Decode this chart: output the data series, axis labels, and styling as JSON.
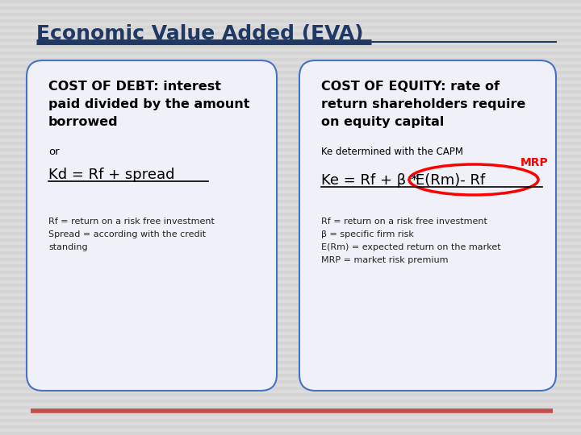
{
  "title": "Economic Value Added (EVA)",
  "title_color": "#1F3864",
  "title_fontsize": 18,
  "bg_color": "#DCDCDC",
  "box_facecolor": "#F0F0F8",
  "box_edgecolor": "#4472C4",
  "title_underline_color1": "#1F3864",
  "bottom_line_color": "#C0504D",
  "left_box": {
    "header_line1": "COST OF DEBT: interest",
    "header_line2": "paid divided by the amount",
    "header_line3": "borrowed",
    "or_text": "or",
    "formula": "Kd = Rf + spread",
    "notes_line1": "Rf = return on a risk free investment",
    "notes_line2": "Spread = according with the credit",
    "notes_line3": "standing"
  },
  "right_box": {
    "header_line1": "COST OF EQUITY: rate of",
    "header_line2": "return shareholders require",
    "header_line3": "on equity capital",
    "capm_text": "Ke determined with the CAPM",
    "mrp_text": "MRP",
    "formula_left": "Ke = Rf + β *  ",
    "formula_right": "E(Rm)- Rf",
    "notes_line1": "Rf = return on a risk free investment",
    "notes_line2": "β = specific firm risk",
    "notes_line3": "E(Rm) = expected return on the market",
    "notes_line4": "MRP = market risk premium"
  }
}
